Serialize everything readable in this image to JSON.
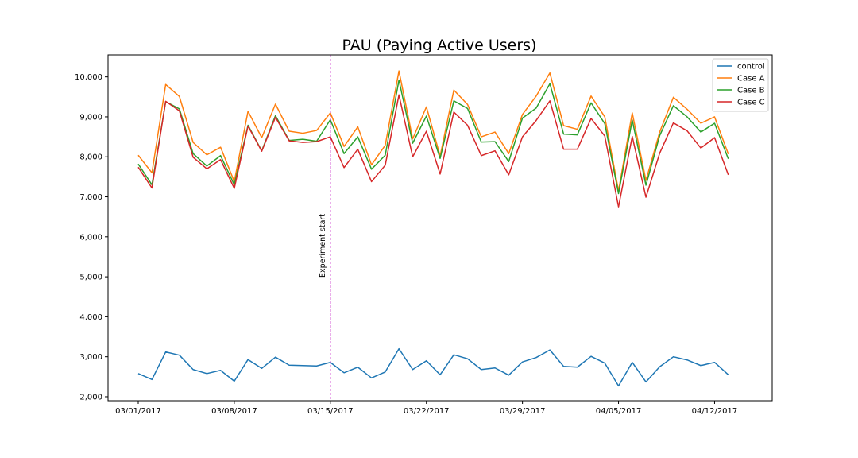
{
  "chart_data": {
    "type": "line",
    "title": "PAU (Paying Active Users)",
    "xlabel": "",
    "ylabel": "",
    "x_start": "2017-03-01",
    "x_end": "2017-04-14",
    "xticks": [
      "03/01/2017",
      "03/08/2017",
      "03/15/2017",
      "03/22/2017",
      "03/29/2017",
      "04/05/2017",
      "04/12/2017"
    ],
    "yticks": [
      "2,000",
      "3,000",
      "4,000",
      "5,000",
      "6,000",
      "7,000",
      "8,000",
      "9,000",
      "10,000"
    ],
    "ylim": [
      1900,
      10550
    ],
    "grid": false,
    "legend_position": "top-right",
    "annotation": {
      "text": "Experiment start",
      "x": "2017-03-15",
      "color": "#bf00bf"
    },
    "series": [
      {
        "name": "control",
        "color": "#1f77b4",
        "values": [
          2580,
          2430,
          3120,
          3040,
          2680,
          2580,
          2660,
          2390,
          2930,
          2710,
          2990,
          2790,
          2780,
          2770,
          2860,
          2600,
          2740,
          2470,
          2620,
          3200,
          2680,
          2900,
          2550,
          3050,
          2950,
          2680,
          2720,
          2540,
          2870,
          2980,
          3170,
          2760,
          2740,
          3010,
          2840,
          2270,
          2860,
          2370,
          2750,
          3000,
          2920,
          2780,
          2860,
          2550
        ]
      },
      {
        "name": "Case A",
        "color": "#ff7f0e",
        "values": [
          8040,
          7600,
          9810,
          9510,
          8360,
          8050,
          8240,
          7380,
          9140,
          8480,
          9320,
          8640,
          8590,
          8660,
          9100,
          8260,
          8750,
          7800,
          8290,
          10150,
          8450,
          9250,
          8020,
          9670,
          9310,
          8500,
          8620,
          8080,
          9060,
          9520,
          10100,
          8780,
          8690,
          9520,
          9000,
          7150,
          9100,
          7410,
          8620,
          9490,
          9190,
          8840,
          9000,
          8070
        ]
      },
      {
        "name": "Case B",
        "color": "#2ca02c",
        "values": [
          7820,
          7300,
          9380,
          9200,
          8080,
          7770,
          8030,
          7300,
          8790,
          8150,
          9030,
          8410,
          8440,
          8390,
          8930,
          8080,
          8500,
          7690,
          8040,
          9920,
          8340,
          9020,
          7960,
          9400,
          9210,
          8370,
          8380,
          7880,
          8970,
          9220,
          9830,
          8570,
          8550,
          9350,
          8830,
          7080,
          8920,
          7290,
          8530,
          9280,
          9000,
          8620,
          8840,
          7950
        ]
      },
      {
        "name": "Case C",
        "color": "#d62728",
        "values": [
          7740,
          7220,
          9390,
          9150,
          7990,
          7700,
          7930,
          7210,
          8770,
          8140,
          8990,
          8400,
          8360,
          8380,
          8500,
          7730,
          8190,
          7380,
          7790,
          9550,
          8000,
          8640,
          7570,
          9120,
          8790,
          8030,
          8150,
          7550,
          8500,
          8910,
          9400,
          8190,
          8190,
          8960,
          8520,
          6750,
          8510,
          6990,
          8090,
          8850,
          8650,
          8220,
          8480,
          7550
        ]
      }
    ]
  }
}
